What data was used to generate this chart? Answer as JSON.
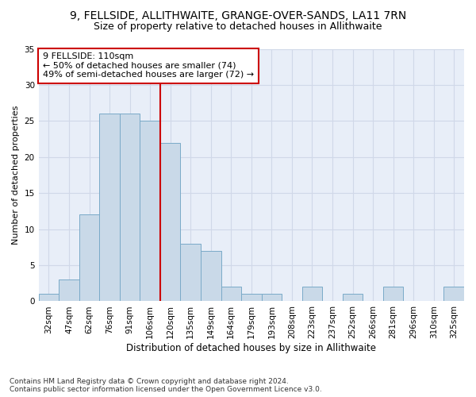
{
  "title1": "9, FELLSIDE, ALLITHWAITE, GRANGE-OVER-SANDS, LA11 7RN",
  "title2": "Size of property relative to detached houses in Allithwaite",
  "xlabel": "Distribution of detached houses by size in Allithwaite",
  "ylabel": "Number of detached properties",
  "bar_labels": [
    "32sqm",
    "47sqm",
    "62sqm",
    "76sqm",
    "91sqm",
    "106sqm",
    "120sqm",
    "135sqm",
    "149sqm",
    "164sqm",
    "179sqm",
    "193sqm",
    "208sqm",
    "223sqm",
    "237sqm",
    "252sqm",
    "266sqm",
    "281sqm",
    "296sqm",
    "310sqm",
    "325sqm"
  ],
  "bar_values": [
    1,
    3,
    12,
    26,
    26,
    25,
    22,
    8,
    7,
    2,
    1,
    1,
    0,
    2,
    0,
    1,
    0,
    2,
    0,
    0,
    2
  ],
  "bar_color": "#c9d9e8",
  "bar_edge_color": "#7aaac8",
  "vline_x": 5.5,
  "vline_color": "#cc0000",
  "annotation_text": "9 FELLSIDE: 110sqm\n← 50% of detached houses are smaller (74)\n49% of semi-detached houses are larger (72) →",
  "annotation_box_color": "#ffffff",
  "annotation_box_edge": "#cc0000",
  "ylim": [
    0,
    35
  ],
  "yticks": [
    0,
    5,
    10,
    15,
    20,
    25,
    30,
    35
  ],
  "grid_color": "#d0d8e8",
  "bg_color": "#e8eef8",
  "footnote": "Contains HM Land Registry data © Crown copyright and database right 2024.\nContains public sector information licensed under the Open Government Licence v3.0.",
  "title1_fontsize": 10,
  "title2_fontsize": 9,
  "xlabel_fontsize": 8.5,
  "ylabel_fontsize": 8,
  "tick_fontsize": 7.5,
  "annot_fontsize": 8,
  "footnote_fontsize": 6.5
}
